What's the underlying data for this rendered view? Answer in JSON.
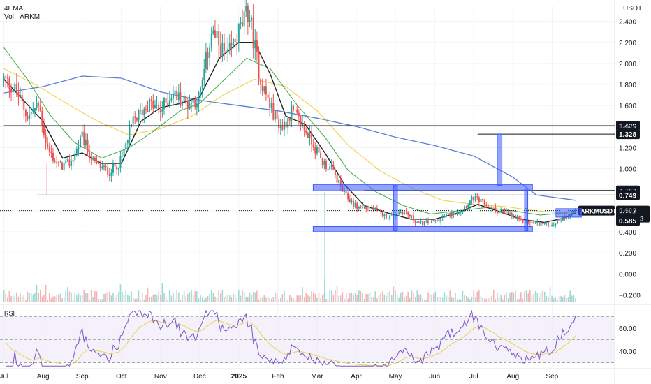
{
  "header": {
    "indicator_label": "4EMA",
    "volume_label": "Vol · ARKM",
    "currency": "USDT"
  },
  "rsi_pane": {
    "label": "RSI",
    "ticks": [
      "60.00",
      "40.00"
    ],
    "levels": [
      70,
      50,
      30
    ]
  },
  "chart_data": {
    "type": "candlestick",
    "symbol": "ARKMUSDT",
    "x_ticks": [
      "Jul",
      "Aug",
      "Sep",
      "Oct",
      "Nov",
      "Dec",
      "2025",
      "Feb",
      "Mar",
      "Apr",
      "May",
      "Jun",
      "Jul",
      "Aug",
      "Sep"
    ],
    "y_ticks": [
      "2.400",
      "2.200",
      "2.000",
      "1.800",
      "1.600",
      "1.400",
      "1.200",
      "1.000",
      "0.800",
      "0.600",
      "0.400",
      "0.200",
      "0.000",
      "−0.200"
    ],
    "ylim": [
      -0.25,
      2.55
    ],
    "price_path": [
      {
        "t": 0.0,
        "p": 1.85
      },
      {
        "t": 0.3,
        "p": 1.75
      },
      {
        "t": 0.6,
        "p": 1.5
      },
      {
        "t": 0.9,
        "p": 1.6
      },
      {
        "t": 1.1,
        "p": 1.2
      },
      {
        "t": 1.4,
        "p": 1.02
      },
      {
        "t": 1.7,
        "p": 1.05
      },
      {
        "t": 2.0,
        "p": 1.3
      },
      {
        "t": 2.3,
        "p": 1.05
      },
      {
        "t": 2.7,
        "p": 0.97
      },
      {
        "t": 3.0,
        "p": 1.08
      },
      {
        "t": 3.3,
        "p": 1.45
      },
      {
        "t": 3.7,
        "p": 1.62
      },
      {
        "t": 4.0,
        "p": 1.55
      },
      {
        "t": 4.3,
        "p": 1.72
      },
      {
        "t": 4.7,
        "p": 1.62
      },
      {
        "t": 5.0,
        "p": 1.68
      },
      {
        "t": 5.3,
        "p": 2.3
      },
      {
        "t": 5.7,
        "p": 2.05
      },
      {
        "t": 6.0,
        "p": 2.3
      },
      {
        "t": 6.25,
        "p": 2.5
      },
      {
        "t": 6.55,
        "p": 1.85
      },
      {
        "t": 6.85,
        "p": 1.55
      },
      {
        "t": 7.1,
        "p": 1.38
      },
      {
        "t": 7.35,
        "p": 1.55
      },
      {
        "t": 7.6,
        "p": 1.42
      },
      {
        "t": 7.85,
        "p": 1.28
      },
      {
        "t": 8.1,
        "p": 1.08
      },
      {
        "t": 8.4,
        "p": 0.98
      },
      {
        "t": 8.7,
        "p": 0.75
      },
      {
        "t": 9.0,
        "p": 0.64
      },
      {
        "t": 9.4,
        "p": 0.62
      },
      {
        "t": 9.8,
        "p": 0.54
      },
      {
        "t": 10.2,
        "p": 0.6
      },
      {
        "t": 10.6,
        "p": 0.48
      },
      {
        "t": 11.0,
        "p": 0.5
      },
      {
        "t": 11.4,
        "p": 0.57
      },
      {
        "t": 11.7,
        "p": 0.62
      },
      {
        "t": 12.0,
        "p": 0.72
      },
      {
        "t": 12.3,
        "p": 0.66
      },
      {
        "t": 12.6,
        "p": 0.6
      },
      {
        "t": 12.9,
        "p": 0.57
      },
      {
        "t": 13.2,
        "p": 0.5
      },
      {
        "t": 13.6,
        "p": 0.48
      },
      {
        "t": 14.0,
        "p": 0.47
      },
      {
        "t": 14.3,
        "p": 0.54
      },
      {
        "t": 14.6,
        "p": 0.6
      }
    ],
    "ema_fast_path": [
      {
        "t": 0.0,
        "p": 1.85
      },
      {
        "t": 0.5,
        "p": 1.65
      },
      {
        "t": 1.0,
        "p": 1.45
      },
      {
        "t": 1.5,
        "p": 1.1
      },
      {
        "t": 2.0,
        "p": 1.15
      },
      {
        "t": 2.5,
        "p": 1.05
      },
      {
        "t": 3.0,
        "p": 1.05
      },
      {
        "t": 3.5,
        "p": 1.45
      },
      {
        "t": 4.0,
        "p": 1.58
      },
      {
        "t": 4.5,
        "p": 1.62
      },
      {
        "t": 5.0,
        "p": 1.68
      },
      {
        "t": 5.5,
        "p": 2.05
      },
      {
        "t": 6.0,
        "p": 2.2
      },
      {
        "t": 6.4,
        "p": 2.2
      },
      {
        "t": 6.8,
        "p": 1.9
      },
      {
        "t": 7.2,
        "p": 1.5
      },
      {
        "t": 7.7,
        "p": 1.42
      },
      {
        "t": 8.2,
        "p": 1.15
      },
      {
        "t": 8.7,
        "p": 0.85
      },
      {
        "t": 9.2,
        "p": 0.65
      },
      {
        "t": 9.8,
        "p": 0.58
      },
      {
        "t": 10.4,
        "p": 0.52
      },
      {
        "t": 11.0,
        "p": 0.52
      },
      {
        "t": 11.6,
        "p": 0.58
      },
      {
        "t": 12.1,
        "p": 0.66
      },
      {
        "t": 12.6,
        "p": 0.6
      },
      {
        "t": 13.2,
        "p": 0.52
      },
      {
        "t": 13.8,
        "p": 0.49
      },
      {
        "t": 14.3,
        "p": 0.53
      },
      {
        "t": 14.6,
        "p": 0.58
      }
    ],
    "ema_mid_path": [
      {
        "t": 0.0,
        "p": 2.15
      },
      {
        "t": 0.6,
        "p": 1.85
      },
      {
        "t": 1.2,
        "p": 1.5
      },
      {
        "t": 1.8,
        "p": 1.25
      },
      {
        "t": 2.5,
        "p": 1.1
      },
      {
        "t": 3.2,
        "p": 1.2
      },
      {
        "t": 3.8,
        "p": 1.35
      },
      {
        "t": 4.5,
        "p": 1.55
      },
      {
        "t": 5.0,
        "p": 1.62
      },
      {
        "t": 5.5,
        "p": 1.8
      },
      {
        "t": 6.2,
        "p": 2.05
      },
      {
        "t": 6.8,
        "p": 1.95
      },
      {
        "t": 7.5,
        "p": 1.6
      },
      {
        "t": 8.2,
        "p": 1.3
      },
      {
        "t": 8.8,
        "p": 0.98
      },
      {
        "t": 9.5,
        "p": 0.78
      },
      {
        "t": 10.2,
        "p": 0.65
      },
      {
        "t": 10.9,
        "p": 0.57
      },
      {
        "t": 11.6,
        "p": 0.6
      },
      {
        "t": 12.3,
        "p": 0.63
      },
      {
        "t": 13.0,
        "p": 0.6
      },
      {
        "t": 13.7,
        "p": 0.56
      },
      {
        "t": 14.3,
        "p": 0.58
      },
      {
        "t": 14.6,
        "p": 0.6
      }
    ],
    "ema_slow_path": [
      {
        "t": 0.0,
        "p": 1.95
      },
      {
        "t": 0.8,
        "p": 1.8
      },
      {
        "t": 1.6,
        "p": 1.62
      },
      {
        "t": 2.4,
        "p": 1.45
      },
      {
        "t": 3.2,
        "p": 1.32
      },
      {
        "t": 4.0,
        "p": 1.38
      },
      {
        "t": 4.8,
        "p": 1.5
      },
      {
        "t": 5.6,
        "p": 1.7
      },
      {
        "t": 6.4,
        "p": 1.85
      },
      {
        "t": 7.2,
        "p": 1.78
      },
      {
        "t": 8.0,
        "p": 1.55
      },
      {
        "t": 8.8,
        "p": 1.22
      },
      {
        "t": 9.6,
        "p": 0.98
      },
      {
        "t": 10.4,
        "p": 0.82
      },
      {
        "t": 11.2,
        "p": 0.7
      },
      {
        "t": 12.0,
        "p": 0.66
      },
      {
        "t": 12.8,
        "p": 0.64
      },
      {
        "t": 13.6,
        "p": 0.6
      },
      {
        "t": 14.6,
        "p": 0.57
      }
    ],
    "ema_long_path": [
      {
        "t": 0.0,
        "p": 1.72
      },
      {
        "t": 1.0,
        "p": 1.78
      },
      {
        "t": 2.0,
        "p": 1.88
      },
      {
        "t": 3.0,
        "p": 1.86
      },
      {
        "t": 4.0,
        "p": 1.73
      },
      {
        "t": 5.0,
        "p": 1.65
      },
      {
        "t": 6.0,
        "p": 1.6
      },
      {
        "t": 7.0,
        "p": 1.55
      },
      {
        "t": 8.0,
        "p": 1.48
      },
      {
        "t": 9.0,
        "p": 1.4
      },
      {
        "t": 10.0,
        "p": 1.3
      },
      {
        "t": 11.0,
        "p": 1.22
      },
      {
        "t": 12.0,
        "p": 1.12
      },
      {
        "t": 13.0,
        "p": 0.92
      },
      {
        "t": 13.6,
        "p": 0.75
      },
      {
        "t": 14.6,
        "p": 0.7
      }
    ],
    "horizontal_levels": [
      {
        "price": 1.409,
        "label": "1.409",
        "t_start": 0.0
      },
      {
        "price": 1.328,
        "label": "1.328",
        "t_start": 12.1
      },
      {
        "price": 0.793,
        "label": "0.793",
        "t_start": 9.2
      },
      {
        "price": 0.749,
        "label": "0.749",
        "t_start": 0.85
      }
    ],
    "current_price": {
      "price": 0.602,
      "label": "0.602",
      "symbol_label": "ARKMUSDT",
      "countdown": "15:30:23"
    },
    "extra_price_label": {
      "price": 0.585,
      "label": "0.585"
    },
    "boxes": [
      {
        "t1": 7.9,
        "t2": 13.5,
        "p1": 0.79,
        "p2": 0.85
      },
      {
        "t1": 7.9,
        "t2": 13.5,
        "p1": 0.4,
        "p2": 0.45
      },
      {
        "t1": 9.95,
        "t2": 10.05,
        "p1": 0.41,
        "p2": 0.84
      },
      {
        "t1": 12.6,
        "t2": 12.72,
        "p1": 0.84,
        "p2": 1.33
      },
      {
        "t1": 13.3,
        "t2": 13.38,
        "p1": 0.62,
        "p2": 0.8
      },
      {
        "t1": 13.3,
        "t2": 13.38,
        "p1": 0.41,
        "p2": 0.62
      },
      {
        "t1": 14.1,
        "t2": 14.75,
        "p1": 0.54,
        "p2": 0.62
      }
    ],
    "rsi_colors": {
      "line": "#7e57c2",
      "ma": "#e8d34a",
      "band": "#ede7f6"
    },
    "colors": {
      "up": "#26a69a",
      "down": "#ef5350",
      "box": "#3d5afe",
      "ema_fast": "#212121",
      "ema_mid": "#4caf50",
      "ema_slow": "#f2d24a",
      "ema_long": "#5b7fd6"
    }
  }
}
